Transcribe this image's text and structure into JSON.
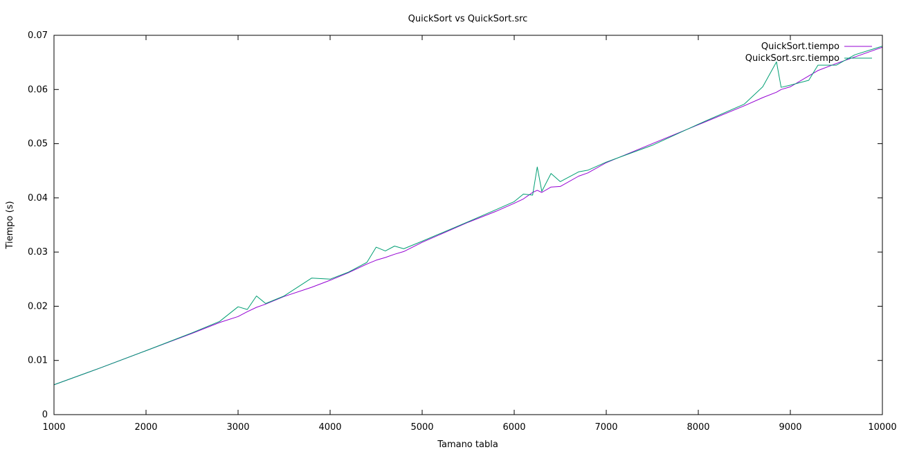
{
  "chart_data": {
    "type": "line",
    "title": "QuickSort vs QuickSort.src",
    "xlabel": "Tamano tabla",
    "ylabel": "Tiempo (s)",
    "xlim": [
      1000,
      10000
    ],
    "ylim": [
      0,
      0.07
    ],
    "grid": false,
    "legend_position": "top-right",
    "x_ticks": [
      "1000",
      "2000",
      "3000",
      "4000",
      "5000",
      "6000",
      "7000",
      "8000",
      "9000",
      "10000"
    ],
    "y_ticks": [
      "0",
      "0.01",
      "0.02",
      "0.03",
      "0.04",
      "0.05",
      "0.06",
      "0.07"
    ],
    "x": [
      1000,
      1500,
      2000,
      2500,
      2800,
      3000,
      3100,
      3200,
      3300,
      3500,
      3800,
      4000,
      4200,
      4400,
      4500,
      4600,
      4700,
      4800,
      5000,
      5500,
      5800,
      6000,
      6100,
      6200,
      6250,
      6300,
      6400,
      6500,
      6700,
      6800,
      7000,
      7500,
      8000,
      8500,
      8700,
      8850,
      8900,
      9000,
      9200,
      9300,
      9500,
      9700,
      10000
    ],
    "series": [
      {
        "name": "QuickSort.tiempo",
        "color": "#9400d3",
        "values": [
          0.0055,
          0.0086,
          0.0118,
          0.015,
          0.017,
          0.0181,
          0.019,
          0.0198,
          0.0204,
          0.0218,
          0.0235,
          0.0248,
          0.0262,
          0.0278,
          0.0285,
          0.029,
          0.0296,
          0.0301,
          0.0318,
          0.0355,
          0.0375,
          0.039,
          0.0398,
          0.041,
          0.0414,
          0.041,
          0.042,
          0.0421,
          0.044,
          0.0446,
          0.0465,
          0.05,
          0.0535,
          0.057,
          0.0585,
          0.0595,
          0.06,
          0.0605,
          0.0625,
          0.0635,
          0.0648,
          0.066,
          0.0678
        ]
      },
      {
        "name": "QuickSort.src.tiempo",
        "color": "#009e73",
        "values": [
          0.0055,
          0.0086,
          0.0118,
          0.0151,
          0.0172,
          0.0199,
          0.0194,
          0.0219,
          0.0205,
          0.0219,
          0.0252,
          0.025,
          0.0263,
          0.0281,
          0.0309,
          0.0302,
          0.0311,
          0.0306,
          0.032,
          0.0356,
          0.0378,
          0.0393,
          0.0407,
          0.0405,
          0.0457,
          0.0412,
          0.0445,
          0.043,
          0.0448,
          0.0451,
          0.0466,
          0.0497,
          0.0536,
          0.0573,
          0.0605,
          0.0651,
          0.0604,
          0.0608,
          0.0617,
          0.0645,
          0.0645,
          0.0664,
          0.068
        ]
      }
    ]
  }
}
